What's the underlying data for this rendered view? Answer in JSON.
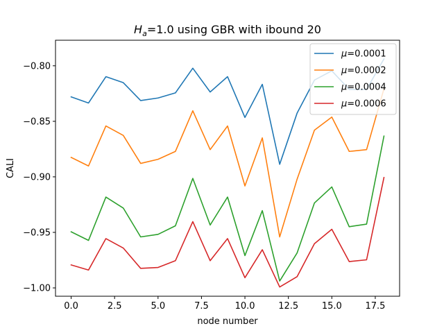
{
  "chart_data": {
    "type": "line",
    "title": {
      "main": "H",
      "subscript": "a",
      "rest": "=1.0 using GBR with ibound 20"
    },
    "xlabel": "node number",
    "ylabel": "CALI",
    "xlim": [
      -0.9,
      18.9
    ],
    "ylim": [
      -1.0075,
      -0.777
    ],
    "xticks": [
      0.0,
      2.5,
      5.0,
      7.5,
      10.0,
      12.5,
      15.0,
      17.5
    ],
    "xtick_labels": [
      "0.0",
      "2.5",
      "5.0",
      "7.5",
      "10.0",
      "12.5",
      "15.0",
      "17.5"
    ],
    "yticks": [
      -0.8,
      -0.85,
      -0.9,
      -0.95,
      -1.0
    ],
    "ytick_labels": [
      "−0.80",
      "−0.85",
      "−0.90",
      "−0.95",
      "−1.00"
    ],
    "grid": false,
    "legend_position": "top-right",
    "x": [
      0,
      1,
      2,
      3,
      4,
      5,
      6,
      7,
      8,
      9,
      10,
      11,
      12,
      13,
      14,
      15,
      16,
      17,
      18
    ],
    "series": [
      {
        "name_prefix": "μ",
        "name_value": "=0.0001",
        "color": "#1f77b4",
        "values": [
          -0.828,
          -0.8335,
          -0.8098,
          -0.8152,
          -0.8313,
          -0.829,
          -0.8244,
          -0.8022,
          -0.8236,
          -0.8098,
          -0.8465,
          -0.8167,
          -0.8887,
          -0.8427,
          -0.8129,
          -0.8045,
          -0.8213,
          -0.8213,
          -0.7938
        ]
      },
      {
        "name_prefix": "μ",
        "name_value": "=0.0002",
        "color": "#ff7f0e",
        "values": [
          -0.8825,
          -0.8902,
          -0.8542,
          -0.8627,
          -0.8879,
          -0.8842,
          -0.8771,
          -0.8405,
          -0.8755,
          -0.8542,
          -0.9082,
          -0.8649,
          -0.9541,
          -0.9022,
          -0.858,
          -0.8462,
          -0.8771,
          -0.8755,
          -0.8207
        ]
      },
      {
        "name_prefix": "μ",
        "name_value": "=0.0004",
        "color": "#2ca02c",
        "values": [
          -0.9495,
          -0.9572,
          -0.9182,
          -0.9281,
          -0.9541,
          -0.9518,
          -0.9441,
          -0.9014,
          -0.9434,
          -0.9182,
          -0.9709,
          -0.9304,
          -0.9938,
          -0.9686,
          -0.9235,
          -0.9091,
          -0.9449,
          -0.9426,
          -0.8633
        ]
      },
      {
        "name_prefix": "μ",
        "name_value": "=0.0006",
        "color": "#d62728",
        "values": [
          -0.9793,
          -0.9839,
          -0.9556,
          -0.9641,
          -0.9824,
          -0.9816,
          -0.9755,
          -0.9403,
          -0.9755,
          -0.9556,
          -0.9908,
          -0.9656,
          -0.9992,
          -0.9899,
          -0.9602,
          -0.9472,
          -0.9763,
          -0.9747,
          -0.9006
        ]
      }
    ]
  }
}
